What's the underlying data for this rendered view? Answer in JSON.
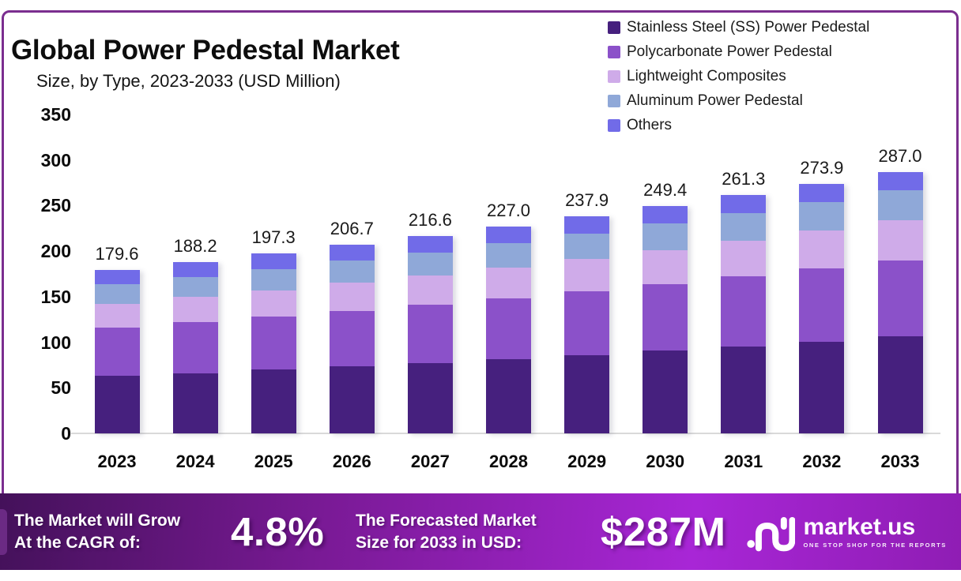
{
  "title": "Global Power Pedestal Market",
  "subtitle": "Size, by Type, 2023-2033 (USD Million)",
  "chart_data": {
    "type": "bar",
    "stacked": true,
    "grid": false,
    "legend_position": "top-right",
    "xlabel": "",
    "ylabel": "",
    "ylim": [
      0,
      350
    ],
    "y_ticks": [
      0,
      50,
      100,
      150,
      200,
      250,
      300,
      350
    ],
    "categories": [
      "2023",
      "2024",
      "2025",
      "2026",
      "2027",
      "2028",
      "2029",
      "2030",
      "2031",
      "2032",
      "2033"
    ],
    "series": [
      {
        "name": "Stainless Steel (SS) Power Pedestal",
        "color": "#46207e",
        "values": [
          62.9,
          66.2,
          69.8,
          73.6,
          77.5,
          81.7,
          86.1,
          90.8,
          95.6,
          100.8,
          106.2
        ]
      },
      {
        "name": "Polycarbonate Power Pedestal",
        "color": "#8b51c9",
        "values": [
          53.0,
          55.5,
          58.1,
          60.8,
          63.6,
          66.6,
          69.8,
          73.0,
          76.5,
          80.1,
          83.8
        ]
      },
      {
        "name": "Lightweight Composites",
        "color": "#cfabe9",
        "values": [
          26.4,
          27.8,
          29.2,
          30.7,
          32.3,
          33.9,
          35.7,
          37.5,
          39.5,
          41.5,
          43.6
        ]
      },
      {
        "name": "Aluminum Power Pedestal",
        "color": "#8fa8d8",
        "values": [
          21.2,
          22.2,
          23.2,
          24.2,
          25.3,
          26.4,
          27.6,
          28.9,
          30.2,
          31.6,
          33.0
        ]
      },
      {
        "name": "Others",
        "color": "#716be8",
        "values": [
          16.1,
          16.5,
          17.0,
          17.4,
          17.9,
          18.4,
          18.7,
          19.2,
          19.5,
          19.9,
          20.4
        ]
      }
    ],
    "totals": [
      179.6,
      188.2,
      197.3,
      206.7,
      216.6,
      227.0,
      237.9,
      249.4,
      261.3,
      273.9,
      287.0
    ],
    "total_labels": [
      "179.6",
      "188.2",
      "197.3",
      "206.7",
      "216.6",
      "227.0",
      "237.9",
      "249.4",
      "261.3",
      "273.9",
      "287.0"
    ]
  },
  "banner": {
    "cagr_text": [
      "The Market will Grow",
      "At the CAGR of:"
    ],
    "cagr_value": "4.8%",
    "forecast_text": [
      "The Forecasted Market",
      "Size for 2033 in USD:"
    ],
    "forecast_value": "$287M",
    "logo_text": "market.us",
    "logo_tagline": "ONE STOP SHOP FOR THE REPORTS"
  },
  "colors": {
    "frame_border": "#7b2e8f",
    "baseline": "#d9d9d9",
    "banner_gradient": [
      "#44115a",
      "#7a1a96",
      "#a826d6",
      "#8f1db4"
    ],
    "text": "#0d0d0d",
    "banner_text": "#ffffff"
  }
}
